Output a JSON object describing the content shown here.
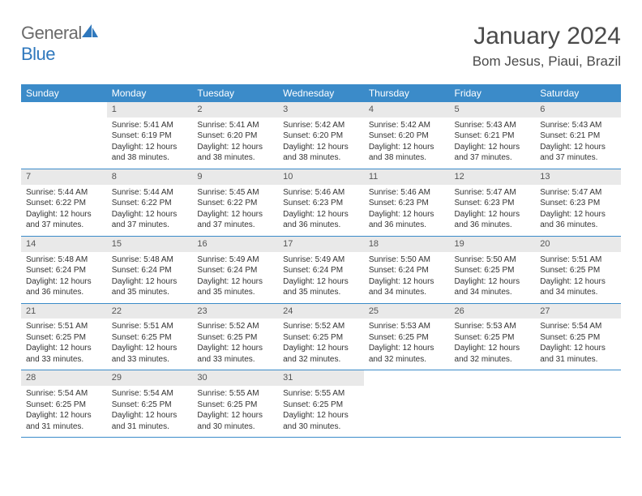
{
  "brand": {
    "general": "General",
    "blue": "Blue",
    "sail_color": "#2f78bd",
    "text_gray": "#6b6b6b"
  },
  "title": {
    "month": "January 2024",
    "location": "Bom Jesus, Piaui, Brazil"
  },
  "colors": {
    "header_bg": "#3b8bc9",
    "header_fg": "#ffffff",
    "daynum_bg": "#e9e9e9",
    "rule": "#3b8bc9"
  },
  "weekdays": [
    "Sunday",
    "Monday",
    "Tuesday",
    "Wednesday",
    "Thursday",
    "Friday",
    "Saturday"
  ],
  "weeks": [
    [
      null,
      {
        "n": "1",
        "sunrise": "5:41 AM",
        "sunset": "6:19 PM",
        "daylight": "12 hours and 38 minutes."
      },
      {
        "n": "2",
        "sunrise": "5:41 AM",
        "sunset": "6:20 PM",
        "daylight": "12 hours and 38 minutes."
      },
      {
        "n": "3",
        "sunrise": "5:42 AM",
        "sunset": "6:20 PM",
        "daylight": "12 hours and 38 minutes."
      },
      {
        "n": "4",
        "sunrise": "5:42 AM",
        "sunset": "6:20 PM",
        "daylight": "12 hours and 38 minutes."
      },
      {
        "n": "5",
        "sunrise": "5:43 AM",
        "sunset": "6:21 PM",
        "daylight": "12 hours and 37 minutes."
      },
      {
        "n": "6",
        "sunrise": "5:43 AM",
        "sunset": "6:21 PM",
        "daylight": "12 hours and 37 minutes."
      }
    ],
    [
      {
        "n": "7",
        "sunrise": "5:44 AM",
        "sunset": "6:22 PM",
        "daylight": "12 hours and 37 minutes."
      },
      {
        "n": "8",
        "sunrise": "5:44 AM",
        "sunset": "6:22 PM",
        "daylight": "12 hours and 37 minutes."
      },
      {
        "n": "9",
        "sunrise": "5:45 AM",
        "sunset": "6:22 PM",
        "daylight": "12 hours and 37 minutes."
      },
      {
        "n": "10",
        "sunrise": "5:46 AM",
        "sunset": "6:23 PM",
        "daylight": "12 hours and 36 minutes."
      },
      {
        "n": "11",
        "sunrise": "5:46 AM",
        "sunset": "6:23 PM",
        "daylight": "12 hours and 36 minutes."
      },
      {
        "n": "12",
        "sunrise": "5:47 AM",
        "sunset": "6:23 PM",
        "daylight": "12 hours and 36 minutes."
      },
      {
        "n": "13",
        "sunrise": "5:47 AM",
        "sunset": "6:23 PM",
        "daylight": "12 hours and 36 minutes."
      }
    ],
    [
      {
        "n": "14",
        "sunrise": "5:48 AM",
        "sunset": "6:24 PM",
        "daylight": "12 hours and 36 minutes."
      },
      {
        "n": "15",
        "sunrise": "5:48 AM",
        "sunset": "6:24 PM",
        "daylight": "12 hours and 35 minutes."
      },
      {
        "n": "16",
        "sunrise": "5:49 AM",
        "sunset": "6:24 PM",
        "daylight": "12 hours and 35 minutes."
      },
      {
        "n": "17",
        "sunrise": "5:49 AM",
        "sunset": "6:24 PM",
        "daylight": "12 hours and 35 minutes."
      },
      {
        "n": "18",
        "sunrise": "5:50 AM",
        "sunset": "6:24 PM",
        "daylight": "12 hours and 34 minutes."
      },
      {
        "n": "19",
        "sunrise": "5:50 AM",
        "sunset": "6:25 PM",
        "daylight": "12 hours and 34 minutes."
      },
      {
        "n": "20",
        "sunrise": "5:51 AM",
        "sunset": "6:25 PM",
        "daylight": "12 hours and 34 minutes."
      }
    ],
    [
      {
        "n": "21",
        "sunrise": "5:51 AM",
        "sunset": "6:25 PM",
        "daylight": "12 hours and 33 minutes."
      },
      {
        "n": "22",
        "sunrise": "5:51 AM",
        "sunset": "6:25 PM",
        "daylight": "12 hours and 33 minutes."
      },
      {
        "n": "23",
        "sunrise": "5:52 AM",
        "sunset": "6:25 PM",
        "daylight": "12 hours and 33 minutes."
      },
      {
        "n": "24",
        "sunrise": "5:52 AM",
        "sunset": "6:25 PM",
        "daylight": "12 hours and 32 minutes."
      },
      {
        "n": "25",
        "sunrise": "5:53 AM",
        "sunset": "6:25 PM",
        "daylight": "12 hours and 32 minutes."
      },
      {
        "n": "26",
        "sunrise": "5:53 AM",
        "sunset": "6:25 PM",
        "daylight": "12 hours and 32 minutes."
      },
      {
        "n": "27",
        "sunrise": "5:54 AM",
        "sunset": "6:25 PM",
        "daylight": "12 hours and 31 minutes."
      }
    ],
    [
      {
        "n": "28",
        "sunrise": "5:54 AM",
        "sunset": "6:25 PM",
        "daylight": "12 hours and 31 minutes."
      },
      {
        "n": "29",
        "sunrise": "5:54 AM",
        "sunset": "6:25 PM",
        "daylight": "12 hours and 31 minutes."
      },
      {
        "n": "30",
        "sunrise": "5:55 AM",
        "sunset": "6:25 PM",
        "daylight": "12 hours and 30 minutes."
      },
      {
        "n": "31",
        "sunrise": "5:55 AM",
        "sunset": "6:25 PM",
        "daylight": "12 hours and 30 minutes."
      },
      null,
      null,
      null
    ]
  ],
  "labels": {
    "sunrise": "Sunrise:",
    "sunset": "Sunset:",
    "daylight": "Daylight:"
  }
}
